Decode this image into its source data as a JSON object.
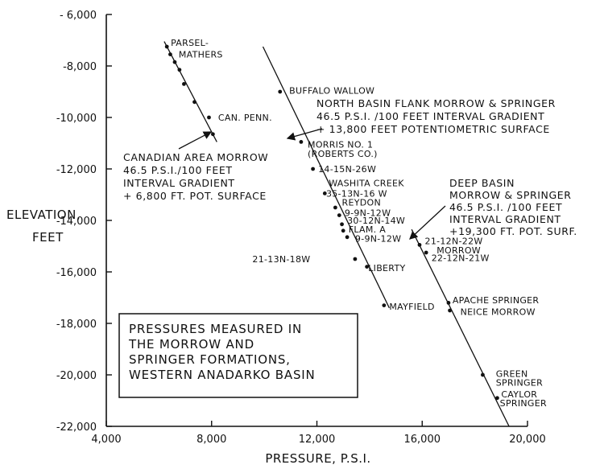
{
  "chart_data": {
    "type": "scatter",
    "title": "",
    "xlabel": "PRESSURE, P.S.I.",
    "ylabel": [
      "ELEVATION,",
      "FEET"
    ],
    "xlim": [
      4000,
      20000
    ],
    "ylim": [
      -22000,
      -6000
    ],
    "x_ticks": [
      "4,000",
      "8,000",
      "12,000",
      "16,000",
      "20,000"
    ],
    "y_ticks": [
      "- 6,000",
      "-8,000",
      "-10,000",
      "-12,000",
      "-14,000",
      "-16,000",
      "-18,000",
      "-20,000",
      "-22,000"
    ],
    "grid": false,
    "legend_box": [
      "PRESSURES MEASURED IN",
      "THE MORROW AND",
      "SPRINGER FORMATIONS,",
      "WESTERN ANADARKO BASIN"
    ],
    "series": [
      {
        "name": "Canadian Area Morrow",
        "points": [
          {
            "x": 6300,
            "y": -7250
          },
          {
            "x": 6430,
            "y": -7550
          },
          {
            "x": 6600,
            "y": -7850
          },
          {
            "x": 6780,
            "y": -8150
          },
          {
            "x": 6950,
            "y": -8700
          },
          {
            "x": 7350,
            "y": -9400
          },
          {
            "x": 7900,
            "y": -10000
          },
          {
            "x": 8050,
            "y": -10650
          }
        ],
        "fit_line": [
          {
            "x": 6200,
            "y": -7050
          },
          {
            "x": 8200,
            "y": -10950
          }
        ],
        "callout": [
          "CANADIAN AREA MORROW",
          "46.5 P.S.I./100 FEET",
          "INTERVAL GRADIENT",
          "+ 6,800 FT. POT. SURFACE"
        ]
      },
      {
        "name": "North Basin Flank Morrow & Springer",
        "points": [
          {
            "x": 10600,
            "y": -9000
          },
          {
            "x": 11400,
            "y": -10950
          },
          {
            "x": 11850,
            "y": -12000
          },
          {
            "x": 12300,
            "y": -12950
          },
          {
            "x": 12700,
            "y": -13500
          },
          {
            "x": 12850,
            "y": -13800
          },
          {
            "x": 12950,
            "y": -14150
          },
          {
            "x": 13000,
            "y": -14400
          },
          {
            "x": 13150,
            "y": -14650
          },
          {
            "x": 13450,
            "y": -15500
          },
          {
            "x": 13900,
            "y": -15800
          },
          {
            "x": 14550,
            "y": -17300
          }
        ],
        "fit_line": [
          {
            "x": 9950,
            "y": -7250
          },
          {
            "x": 14750,
            "y": -17400
          }
        ],
        "callout": [
          "NORTH BASIN FLANK MORROW & SPRINGER",
          "46.5 P.S.I. /100 FEET INTERVAL GRADIENT",
          "+ 13,800 FEET POTENTIOMETRIC SURFACE"
        ]
      },
      {
        "name": "Deep Basin Morrow & Springer",
        "points": [
          {
            "x": 15900,
            "y": -14950
          },
          {
            "x": 16150,
            "y": -15250
          },
          {
            "x": 17000,
            "y": -17200
          },
          {
            "x": 17050,
            "y": -17500
          },
          {
            "x": 18300,
            "y": -20000
          },
          {
            "x": 18850,
            "y": -20900
          }
        ],
        "fit_line": [
          {
            "x": 15600,
            "y": -14350
          },
          {
            "x": 19300,
            "y": -22000
          }
        ],
        "callout": [
          "DEEP BASIN",
          "MORROW & SPRINGER",
          "46.5 P.S.I. /100 FEET",
          "INTERVAL GRADIENT",
          "+19,300 FT. POT. SURF."
        ]
      }
    ],
    "point_labels": [
      {
        "text": "PARSEL-",
        "x": 6450,
        "y": -7100
      },
      {
        "text": "MATHERS",
        "x": 6750,
        "y": -7550
      },
      {
        "text": "CAN. PENN.",
        "x": 8250,
        "y": -10000
      },
      {
        "text": "BUFFALO WALLOW",
        "x": 10950,
        "y": -8950
      },
      {
        "text": "MORRIS NO. 1",
        "x": 11650,
        "y": -11050
      },
      {
        "text": "(ROBERTS CO.)",
        "x": 11650,
        "y": -11400
      },
      {
        "text": "14-15N-26W",
        "x": 12050,
        "y": -12000
      },
      {
        "text": "WASHITA CREEK",
        "x": 12450,
        "y": -12550
      },
      {
        "text": "35-13N-16 W",
        "x": 12350,
        "y": -12950
      },
      {
        "text": "REYDON",
        "x": 12950,
        "y": -13300
      },
      {
        "text": "9-9N-12W",
        "x": 13050,
        "y": -13700
      },
      {
        "text": "30-12N-14W",
        "x": 13150,
        "y": -14000
      },
      {
        "text": "FLAM. A",
        "x": 13200,
        "y": -14350
      },
      {
        "text": "9-9N-12W",
        "x": 13450,
        "y": -14700
      },
      {
        "text": "21-13N-18W",
        "x": 9550,
        "y": -15500
      },
      {
        "text": "LIBERTY",
        "x": 13950,
        "y": -15850
      },
      {
        "text": "MAYFIELD",
        "x": 14750,
        "y": -17350
      },
      {
        "text": "21-12N-22W",
        "x": 16100,
        "y": -14800
      },
      {
        "text": "MORROW",
        "x": 16550,
        "y": -15150
      },
      {
        "text": "22-12N-21W",
        "x": 16350,
        "y": -15450
      },
      {
        "text": "APACHE SPRINGER",
        "x": 17150,
        "y": -17100
      },
      {
        "text": "NEICE MORROW",
        "x": 17450,
        "y": -17550
      },
      {
        "text": "GREEN",
        "x": 18800,
        "y": -19950
      },
      {
        "text": "SPRINGER",
        "x": 18800,
        "y": -20300
      },
      {
        "text": "CAYLOR",
        "x": 19000,
        "y": -20750
      },
      {
        "text": "SPRINGER",
        "x": 18950,
        "y": -21100
      }
    ]
  }
}
